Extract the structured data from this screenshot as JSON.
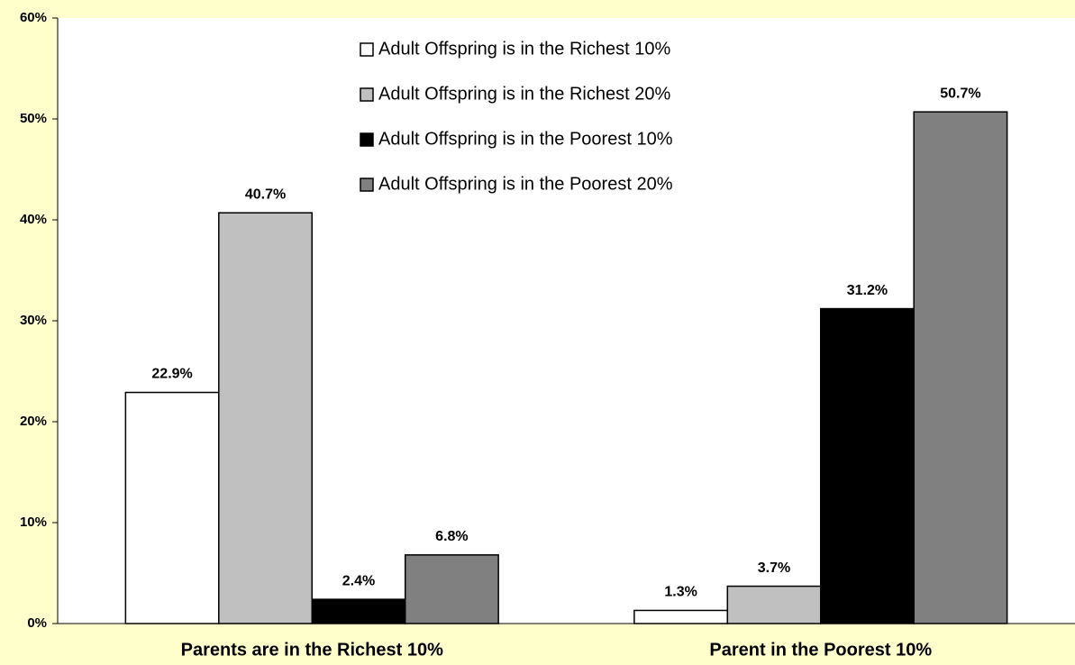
{
  "chart_data": {
    "type": "bar",
    "categories": [
      "Parents are in the Richest 10%",
      "Parent in the Poorest 10%"
    ],
    "series": [
      {
        "name": "Adult Offspring is in the Richest 10%",
        "color": "#ffffff",
        "values": [
          22.9,
          1.3
        ],
        "value_labels": [
          "22.9%",
          "1.3%"
        ]
      },
      {
        "name": "Adult Offspring is in the Richest 20%",
        "color": "#c0c0c0",
        "values": [
          40.7,
          3.7
        ],
        "value_labels": [
          "40.7%",
          "3.7%"
        ]
      },
      {
        "name": "Adult Offspring is in the Poorest 10%",
        "color": "#000000",
        "values": [
          2.4,
          31.2
        ],
        "value_labels": [
          "2.4%",
          "31.2%"
        ]
      },
      {
        "name": "Adult Offspring is in the Poorest 20%",
        "color": "#808080",
        "values": [
          6.8,
          50.7
        ],
        "value_labels": [
          "6.8%",
          "50.7%"
        ]
      }
    ],
    "ylim": [
      0,
      60
    ],
    "yticks": [
      {
        "value": 0,
        "label": "0%"
      },
      {
        "value": 10,
        "label": "10%"
      },
      {
        "value": 20,
        "label": "20%"
      },
      {
        "value": 30,
        "label": "30%"
      },
      {
        "value": 40,
        "label": "40%"
      },
      {
        "value": 50,
        "label": "50%"
      },
      {
        "value": 60,
        "label": "60%"
      }
    ],
    "grid": false,
    "legend": "top"
  }
}
